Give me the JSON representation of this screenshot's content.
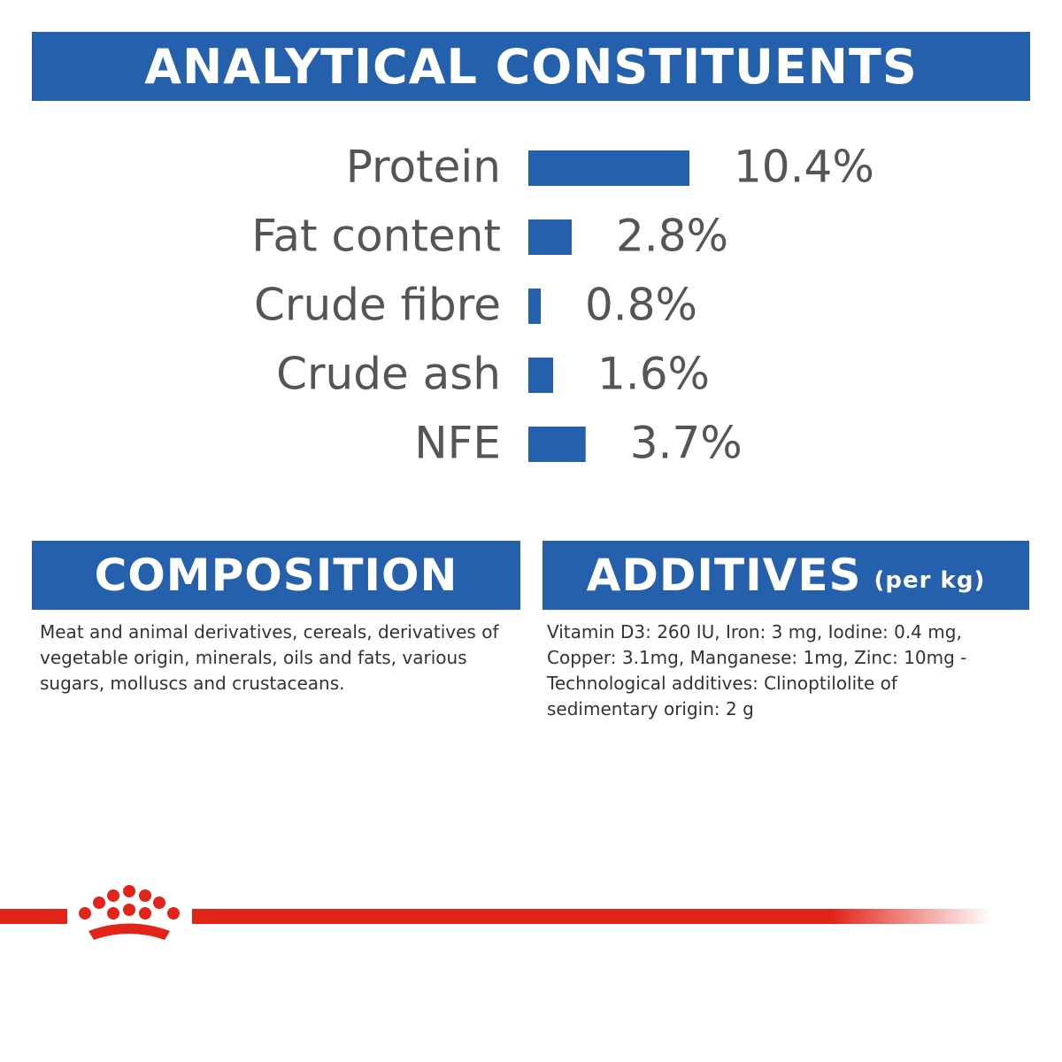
{
  "chart_data": {
    "type": "bar",
    "title": "ANALYTICAL CONSTITUENTS",
    "categories": [
      "Protein",
      "Fat content",
      "Crude fibre",
      "Crude ash",
      "NFE"
    ],
    "values": [
      10.4,
      2.8,
      0.8,
      1.6,
      3.7
    ],
    "value_labels": [
      "10.4%",
      "2.8%",
      "0.8%",
      "1.6%",
      "3.7%"
    ],
    "color": "#2560ad"
  },
  "composition": {
    "title": "COMPOSITION",
    "text": "Meat and animal derivatives, cereals, derivatives of vegetable origin, minerals, oils and fats, various sugars, molluscs and crustaceans."
  },
  "additives": {
    "title": "ADDITIVES",
    "subtitle": "(per kg)",
    "text": "Vitamin D3: 260 IU, Iron: 3 mg, Iodine: 0.4 mg, Copper: 3.1mg, Manganese: 1mg, Zinc: 10mg - Technological additives: Clinoptilolite of sedimentary origin: 2 g"
  }
}
